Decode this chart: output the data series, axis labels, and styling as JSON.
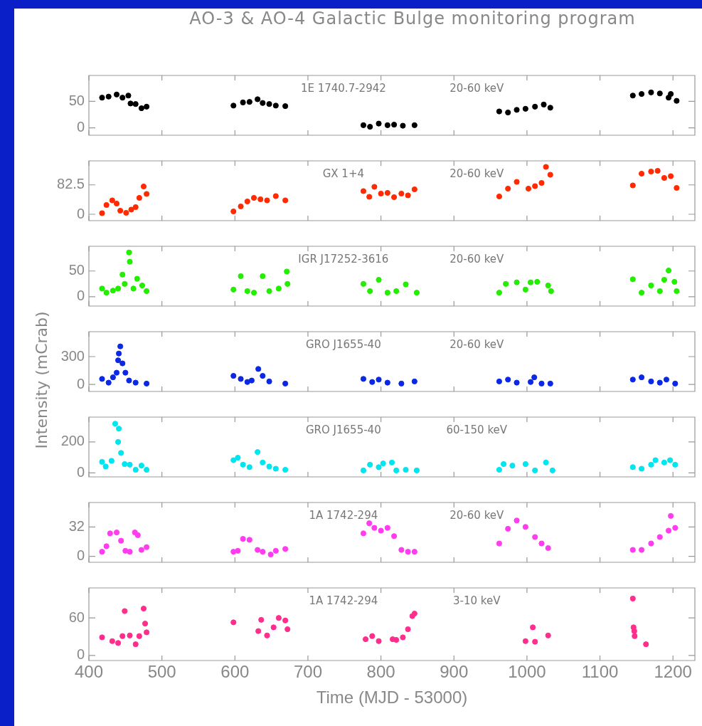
{
  "chart_data": [
    {
      "type": "scatter",
      "title": "AO-3 & AO-4 Galactic Bulge monitoring program",
      "annotations": [
        "1E 1740.7-2942",
        "20-60 keV"
      ],
      "marker": "circle",
      "tick_labels": "y",
      "color": "#000000",
      "x": [
        418,
        427,
        438,
        446,
        454,
        457,
        464,
        472,
        479,
        598,
        611,
        620,
        631,
        638,
        647,
        656,
        669,
        776,
        785,
        797,
        809,
        818,
        830,
        846,
        962,
        974,
        986,
        998,
        1011,
        1023,
        1032,
        1145,
        1157,
        1170,
        1182,
        1194,
        1197,
        1205
      ],
      "values": [
        57,
        59,
        63,
        57,
        61,
        46,
        45,
        37,
        40,
        42,
        48,
        49,
        54,
        47,
        45,
        42,
        41,
        5,
        2,
        8,
        5,
        6,
        4,
        5,
        31,
        29,
        34,
        36,
        40,
        44,
        38,
        61,
        64,
        67,
        65,
        57,
        64,
        51
      ],
      "xlim": [
        400,
        1230
      ],
      "xticks": [
        400,
        500,
        600,
        700,
        800,
        900,
        1000,
        1100,
        1200
      ],
      "ylim": [
        -14,
        99
      ],
      "yticks": [
        0,
        50
      ]
    },
    {
      "type": "scatter",
      "annotations": [
        "GX 1+4",
        "20-60 keV"
      ],
      "marker": "circle",
      "tick_labels": "y",
      "color": "#ff2a00",
      "x": [
        418,
        424,
        432,
        438,
        443,
        451,
        458,
        464,
        469,
        475,
        479,
        598,
        608,
        617,
        626,
        635,
        644,
        656,
        669,
        776,
        784,
        791,
        800,
        809,
        818,
        828,
        837,
        846,
        962,
        974,
        986,
        1002,
        1011,
        1020,
        1026,
        1032,
        1145,
        1157,
        1170,
        1179,
        1188,
        1197,
        1205
      ],
      "values": [
        3,
        26,
        39,
        30,
        10,
        4,
        13,
        20,
        46,
        78,
        57,
        8,
        22,
        36,
        46,
        42,
        39,
        51,
        39,
        65,
        49,
        77,
        58,
        60,
        48,
        58,
        53,
        70,
        50,
        72,
        91,
        72,
        79,
        88,
        133,
        111,
        81,
        114,
        120,
        122,
        102,
        107,
        74
      ],
      "xlim": [
        400,
        1230
      ],
      "xticks": [
        400,
        500,
        600,
        700,
        800,
        900,
        1000,
        1100,
        1200
      ],
      "ylim": [
        -18,
        150
      ],
      "yticks": [
        0,
        82.5
      ]
    },
    {
      "type": "scatter",
      "annotations": [
        "IGR J17252-3616",
        "20-60 keV"
      ],
      "marker": "circle",
      "tick_labels": "y",
      "color": "#22ee00",
      "x": [
        418,
        424,
        433,
        440,
        446,
        449,
        455,
        456,
        461,
        466,
        473,
        479,
        598,
        608,
        617,
        626,
        638,
        647,
        660,
        671,
        672,
        776,
        785,
        797,
        809,
        821,
        834,
        849,
        962,
        971,
        986,
        998,
        1005,
        1014,
        1029,
        1033,
        1145,
        1157,
        1170,
        1182,
        1188,
        1194,
        1202,
        1205
      ],
      "values": [
        16,
        8,
        12,
        16,
        43,
        25,
        86,
        68,
        16,
        35,
        22,
        11,
        14,
        40,
        11,
        8,
        40,
        11,
        16,
        49,
        25,
        25,
        11,
        33,
        8,
        11,
        24,
        8,
        8,
        25,
        28,
        14,
        28,
        29,
        22,
        11,
        34,
        8,
        22,
        11,
        33,
        51,
        29,
        11
      ],
      "xlim": [
        400,
        1230
      ],
      "xticks": [
        400,
        500,
        600,
        700,
        800,
        900,
        1000,
        1100,
        1200
      ],
      "ylim": [
        -18,
        98
      ],
      "yticks": [
        0,
        50
      ]
    },
    {
      "type": "scatter",
      "ylabel": "Intensity (mCrab)",
      "annotations": [
        "GRO J1655-40",
        "20-60 keV"
      ],
      "marker": "circle",
      "tick_labels": "y",
      "color": "#0a28e6",
      "x": [
        418,
        427,
        433,
        438,
        440,
        441,
        443,
        446,
        450,
        455,
        464,
        479,
        598,
        608,
        617,
        623,
        632,
        638,
        647,
        669,
        776,
        788,
        797,
        809,
        828,
        846,
        962,
        974,
        986,
        1005,
        1010,
        1020,
        1032,
        1145,
        1157,
        1170,
        1182,
        1191,
        1203
      ],
      "values": [
        60,
        20,
        77,
        127,
        260,
        333,
        410,
        227,
        127,
        43,
        20,
        10,
        93,
        60,
        27,
        43,
        167,
        93,
        33,
        10,
        60,
        27,
        53,
        20,
        10,
        33,
        33,
        53,
        20,
        27,
        77,
        10,
        10,
        53,
        77,
        33,
        20,
        53,
        10
      ],
      "xlim": [
        400,
        1230
      ],
      "xticks": [
        400,
        500,
        600,
        700,
        800,
        900,
        1000,
        1100,
        1200
      ],
      "ylim": [
        -75,
        568
      ],
      "yticks": [
        0,
        300
      ]
    },
    {
      "type": "scatter",
      "annotations": [
        "GRO J1655-40",
        "60-150 keV"
      ],
      "marker": "circle",
      "tick_labels": "y",
      "color": "#00e6f0",
      "x": [
        418,
        423,
        431,
        436,
        440,
        441,
        444,
        449,
        456,
        464,
        472,
        479,
        598,
        604,
        611,
        620,
        631,
        638,
        647,
        656,
        669,
        776,
        785,
        797,
        803,
        815,
        821,
        834,
        849,
        962,
        968,
        980,
        998,
        1011,
        1026,
        1035,
        1145,
        1157,
        1170,
        1176,
        1188,
        1196,
        1203
      ],
      "values": [
        71,
        41,
        78,
        318,
        200,
        286,
        129,
        57,
        53,
        20,
        47,
        20,
        82,
        98,
        53,
        37,
        135,
        67,
        41,
        27,
        20,
        16,
        53,
        37,
        61,
        67,
        16,
        20,
        16,
        20,
        57,
        47,
        57,
        16,
        67,
        16,
        37,
        27,
        53,
        82,
        67,
        82,
        53
      ],
      "xlim": [
        400,
        1230
      ],
      "xticks": [
        400,
        500,
        600,
        700,
        800,
        900,
        1000,
        1100,
        1200
      ],
      "ylim": [
        -26,
        361
      ],
      "yticks": [
        0,
        200
      ]
    },
    {
      "type": "scatter",
      "annotations": [
        "1A 1742-294",
        "20-60 keV"
      ],
      "marker": "circle",
      "tick_labels": "y",
      "color": "#ff3cf0",
      "x": [
        418,
        424,
        429,
        438,
        444,
        450,
        456,
        463,
        467,
        472,
        479,
        598,
        604,
        611,
        620,
        631,
        638,
        649,
        656,
        669,
        776,
        784,
        791,
        800,
        809,
        818,
        828,
        837,
        846,
        962,
        974,
        986,
        998,
        1011,
        1020,
        1029,
        1145,
        1157,
        1170,
        1182,
        1194,
        1197,
        1203
      ],
      "values": [
        5,
        11,
        25,
        26,
        17,
        6,
        5,
        26,
        23,
        7,
        10,
        5,
        6,
        19,
        18,
        7,
        5,
        2,
        6,
        8,
        25,
        36,
        31,
        28,
        31,
        22,
        7,
        5,
        5,
        14,
        30,
        39,
        32,
        21,
        14,
        9,
        7,
        7,
        14,
        21,
        28,
        44,
        31
      ],
      "xlim": [
        400,
        1230
      ],
      "xticks": [
        400,
        500,
        600,
        700,
        800,
        900,
        1000,
        1100,
        1200
      ],
      "ylim": [
        -6.5,
        58.6
      ],
      "yticks": [
        0,
        32
      ]
    },
    {
      "type": "scatter",
      "xlabel": "Time (MJD - 53000)",
      "annotations": [
        "1A 1742-294",
        "3-10 keV"
      ],
      "marker": "circle",
      "color": "#ff2d8c",
      "x": [
        418,
        432,
        440,
        446,
        449,
        456,
        464,
        469,
        475,
        477,
        479,
        598,
        632,
        636,
        644,
        653,
        660,
        669,
        672,
        779,
        788,
        797,
        816,
        821,
        830,
        837,
        843,
        846,
        998,
        1008,
        1011,
        1029,
        1145,
        1146,
        1147,
        1147.5,
        1163
      ],
      "values": [
        29,
        23,
        20,
        31,
        71,
        32,
        18,
        31,
        75,
        51,
        37,
        53,
        39,
        57,
        32,
        45,
        60,
        56,
        42,
        26,
        31,
        23,
        26,
        25,
        29,
        42,
        63,
        67,
        23,
        45,
        22,
        32,
        91,
        45,
        39,
        31,
        18
      ],
      "xlim": [
        400,
        1230
      ],
      "xticks": [
        400,
        500,
        600,
        700,
        800,
        900,
        1000,
        1100,
        1200
      ],
      "ylim": [
        -8,
        108
      ],
      "yticks": [
        0,
        60
      ]
    }
  ]
}
